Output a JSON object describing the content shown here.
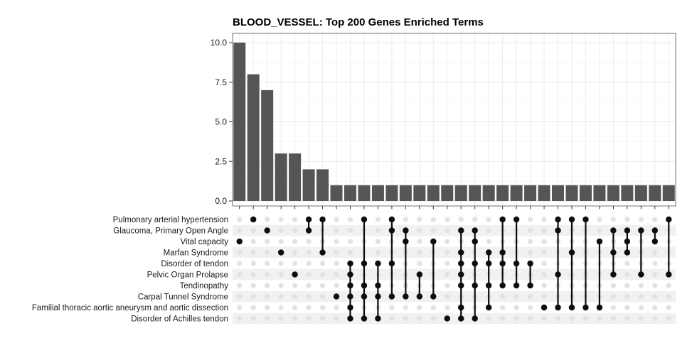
{
  "title": "BLOOD_VESSEL: Top 200 Genes Enriched Terms",
  "chart_data": {
    "type": "upset",
    "title": "BLOOD_VESSEL: Top 200 Genes Enriched Terms",
    "subtitle": "",
    "xlabel": "",
    "ylabel": "",
    "ylim": [
      0,
      10.6
    ],
    "grid": "on",
    "legend": "none",
    "y_ticks": [
      {
        "label": "0.0",
        "value": 0
      },
      {
        "label": "2.5",
        "value": 2.5
      },
      {
        "label": "5.0",
        "value": 5
      },
      {
        "label": "7.5",
        "value": 7.5
      },
      {
        "label": "10.0",
        "value": 10
      }
    ],
    "sets": [
      "Pulmonary arterial hypertension",
      "Glaucoma, Primary Open Angle",
      "Vital capacity",
      "Marfan Syndrome",
      "Disorder of tendon",
      "Pelvic Organ Prolapse",
      "Tendinopathy",
      "Carpal Tunnel Syndrome",
      "Familial thoracic aortic aneurysm and aortic dissection",
      "Disorder of Achilles tendon"
    ],
    "intersections": [
      {
        "size": 10,
        "members": [
          3
        ]
      },
      {
        "size": 8,
        "members": [
          1
        ]
      },
      {
        "size": 7,
        "members": [
          2
        ]
      },
      {
        "size": 3,
        "members": [
          4
        ]
      },
      {
        "size": 3,
        "members": [
          6
        ]
      },
      {
        "size": 2,
        "members": [
          1,
          2
        ]
      },
      {
        "size": 2,
        "members": [
          1,
          4
        ]
      },
      {
        "size": 1,
        "members": [
          8
        ]
      },
      {
        "size": 1,
        "members": [
          5,
          6,
          7,
          8,
          9,
          10
        ]
      },
      {
        "size": 1,
        "members": [
          1,
          5,
          7,
          8,
          10
        ]
      },
      {
        "size": 1,
        "members": [
          5,
          7,
          8,
          10
        ]
      },
      {
        "size": 1,
        "members": [
          1,
          2,
          5,
          8
        ]
      },
      {
        "size": 1,
        "members": [
          2,
          3,
          8
        ]
      },
      {
        "size": 1,
        "members": [
          6,
          8
        ]
      },
      {
        "size": 1,
        "members": [
          3,
          8
        ]
      },
      {
        "size": 1,
        "members": [
          10
        ]
      },
      {
        "size": 1,
        "members": [
          2,
          4,
          5,
          6,
          7,
          9,
          10
        ]
      },
      {
        "size": 1,
        "members": [
          2,
          3,
          5,
          7,
          10
        ]
      },
      {
        "size": 1,
        "members": [
          4,
          5,
          7,
          9
        ]
      },
      {
        "size": 1,
        "members": [
          1,
          4,
          5,
          7
        ]
      },
      {
        "size": 1,
        "members": [
          1,
          5,
          7
        ]
      },
      {
        "size": 1,
        "members": [
          5,
          7
        ]
      },
      {
        "size": 1,
        "members": [
          9
        ]
      },
      {
        "size": 1,
        "members": [
          1,
          2,
          6,
          9
        ]
      },
      {
        "size": 1,
        "members": [
          1,
          4,
          9
        ]
      },
      {
        "size": 1,
        "members": [
          1,
          9
        ]
      },
      {
        "size": 1,
        "members": [
          3,
          9
        ]
      },
      {
        "size": 1,
        "members": [
          2,
          4,
          6
        ]
      },
      {
        "size": 1,
        "members": [
          2,
          3,
          4
        ]
      },
      {
        "size": 1,
        "members": [
          2,
          6
        ]
      },
      {
        "size": 1,
        "members": [
          2,
          3
        ]
      },
      {
        "size": 1,
        "members": [
          1,
          6
        ]
      }
    ],
    "colors": {
      "bar": "#555555",
      "dot_active": "#0d0d0d",
      "dot_inactive": "#e2e2e2",
      "stripe": "#f1f1f1",
      "grid_major": "#ebebeb",
      "grid_minor": "#f5f5f5",
      "panel_border": "#8a8a8a",
      "tick": "#333333",
      "text": "#1a1a1a"
    }
  }
}
